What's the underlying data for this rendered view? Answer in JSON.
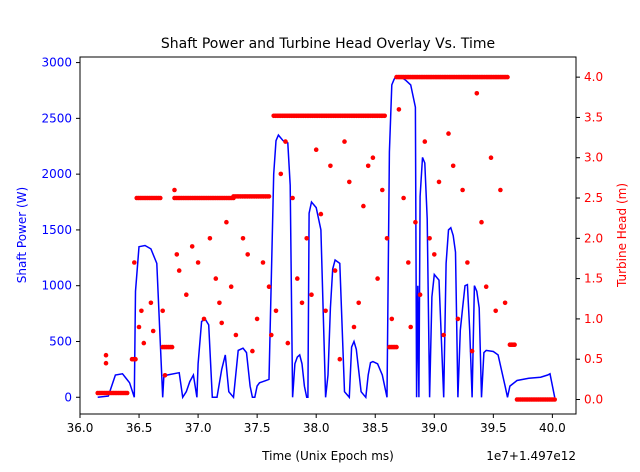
{
  "chart_data": {
    "type": "line",
    "title": "Shaft Power and Turbine Head Overlay Vs. Time",
    "xlabel": "Time (Unix Epoch ms)",
    "x_offset_text": "1e7+1.497e12",
    "xlim": [
      36.0,
      40.2
    ],
    "x_ticks": [
      "36.0",
      "36.5",
      "37.0",
      "37.5",
      "38.0",
      "38.5",
      "39.0",
      "39.5",
      "40.0"
    ],
    "left_axis": {
      "label": "Shaft Power (W)",
      "color": "#0000ff",
      "ylim": [
        -150,
        3050
      ],
      "ticks": [
        "0",
        "500",
        "1000",
        "1500",
        "2000",
        "2500",
        "3000"
      ]
    },
    "right_axis": {
      "label": "Turbine Head (m)",
      "color": "#ff0000",
      "ylim": [
        -0.18,
        4.25
      ],
      "ticks": [
        "0.0",
        "0.5",
        "1.0",
        "1.5",
        "2.0",
        "2.5",
        "3.0",
        "3.5",
        "4.0"
      ]
    },
    "series": [
      {
        "axis": "left",
        "style": "line",
        "color": "#0000ff",
        "x": [
          36.15,
          36.24,
          36.3,
          36.36,
          36.42,
          36.46,
          36.47,
          36.5,
          36.55,
          36.6,
          36.65,
          36.7,
          36.71,
          36.74,
          36.84,
          36.87,
          36.9,
          36.93,
          36.96,
          36.99,
          37.0,
          37.03,
          37.06,
          37.09,
          37.12,
          37.16,
          37.2,
          37.23,
          37.26,
          37.3,
          37.34,
          37.38,
          37.41,
          37.44,
          37.46,
          37.48,
          37.5,
          37.52,
          37.55,
          37.6,
          37.64,
          37.66,
          37.68,
          37.72,
          37.76,
          37.78,
          37.8,
          37.82,
          37.84,
          37.86,
          37.88,
          37.9,
          37.92,
          37.93,
          37.94,
          37.96,
          38.0,
          38.04,
          38.08,
          38.1,
          38.12,
          38.14,
          38.16,
          38.2,
          38.24,
          38.28,
          38.3,
          38.32,
          38.34,
          38.38,
          38.42,
          38.44,
          38.46,
          38.48,
          38.52,
          38.56,
          38.6,
          38.62,
          38.64,
          38.66,
          38.68,
          38.72,
          38.76,
          38.8,
          38.84,
          38.85,
          38.86,
          38.87,
          38.88,
          38.9,
          38.92,
          38.94,
          38.96,
          38.98,
          39.0,
          39.04,
          39.08,
          39.1,
          39.12,
          39.14,
          39.16,
          39.18,
          39.2,
          39.22,
          39.24,
          39.26,
          39.28,
          39.3,
          39.32,
          39.34,
          39.36,
          39.38,
          39.4,
          39.42,
          39.44,
          39.5,
          39.54,
          39.6,
          39.62,
          39.64,
          39.7,
          39.8,
          39.9,
          39.96,
          39.98,
          40.02
        ],
        "y": [
          0,
          10,
          200,
          210,
          130,
          0,
          950,
          1350,
          1360,
          1330,
          1200,
          0,
          180,
          200,
          220,
          0,
          50,
          140,
          200,
          0,
          300,
          680,
          700,
          650,
          0,
          0,
          250,
          380,
          50,
          0,
          420,
          440,
          400,
          100,
          0,
          0,
          100,
          130,
          140,
          160,
          2000,
          2300,
          2350,
          2300,
          2280,
          1900,
          0,
          300,
          360,
          380,
          300,
          100,
          0,
          0,
          1650,
          1750,
          1700,
          1500,
          0,
          200,
          800,
          1150,
          1230,
          1200,
          50,
          0,
          450,
          500,
          430,
          50,
          0,
          200,
          310,
          320,
          300,
          200,
          0,
          2200,
          2800,
          2850,
          2880,
          2870,
          2840,
          2800,
          2600,
          0,
          1000,
          0,
          1800,
          2150,
          2100,
          1600,
          0,
          900,
          1100,
          1050,
          0,
          1200,
          1500,
          1520,
          1450,
          1300,
          0,
          600,
          800,
          1000,
          1010,
          600,
          0,
          1000,
          950,
          800,
          0,
          400,
          420,
          410,
          380,
          100,
          0,
          100,
          150,
          170,
          180,
          200,
          210,
          0
        ]
      },
      {
        "axis": "right",
        "style": "markers",
        "color": "#ff0000",
        "segments": [
          {
            "x": [
              36.15,
              36.4
            ],
            "y": 0.08
          },
          {
            "x": [
              36.44,
              36.47
            ],
            "y": 0.5
          },
          {
            "x": [
              36.48,
              36.68
            ],
            "y": 2.5
          },
          {
            "x": [
              36.7,
              36.78
            ],
            "y": 0.65
          },
          {
            "x": [
              36.8,
              37.3
            ],
            "y": 2.5
          },
          {
            "x": [
              37.3,
              37.6
            ],
            "y": 2.52
          },
          {
            "x": [
              37.64,
              38.58
            ],
            "y": 3.52
          },
          {
            "x": [
              38.62,
              38.68
            ],
            "y": 0.65
          },
          {
            "x": [
              38.68,
              39.62
            ],
            "y": 4.0
          },
          {
            "x": [
              39.64,
              39.68
            ],
            "y": 0.68
          },
          {
            "x": [
              39.7,
              40.02
            ],
            "y": 0.0
          }
        ],
        "scatter": [
          [
            36.22,
            0.55
          ],
          [
            36.22,
            0.45
          ],
          [
            36.46,
            1.7
          ],
          [
            36.5,
            0.9
          ],
          [
            36.52,
            1.1
          ],
          [
            36.54,
            0.7
          ],
          [
            36.6,
            1.2
          ],
          [
            36.62,
            0.85
          ],
          [
            36.7,
            1.1
          ],
          [
            36.72,
            0.3
          ],
          [
            36.8,
            2.6
          ],
          [
            36.82,
            1.8
          ],
          [
            36.84,
            1.6
          ],
          [
            36.9,
            1.3
          ],
          [
            36.95,
            1.9
          ],
          [
            37.0,
            1.7
          ],
          [
            37.05,
            1.0
          ],
          [
            37.1,
            2.0
          ],
          [
            37.15,
            1.5
          ],
          [
            37.18,
            1.2
          ],
          [
            37.2,
            0.95
          ],
          [
            37.24,
            2.2
          ],
          [
            37.28,
            1.4
          ],
          [
            37.32,
            0.8
          ],
          [
            37.38,
            2.0
          ],
          [
            37.42,
            1.8
          ],
          [
            37.46,
            0.6
          ],
          [
            37.5,
            1.0
          ],
          [
            37.55,
            1.7
          ],
          [
            37.6,
            1.4
          ],
          [
            37.62,
            0.8
          ],
          [
            37.66,
            1.1
          ],
          [
            37.7,
            2.8
          ],
          [
            37.74,
            3.2
          ],
          [
            37.76,
            0.7
          ],
          [
            37.8,
            2.5
          ],
          [
            37.84,
            1.5
          ],
          [
            37.88,
            1.2
          ],
          [
            37.92,
            2.0
          ],
          [
            37.96,
            1.3
          ],
          [
            38.0,
            3.1
          ],
          [
            38.04,
            2.3
          ],
          [
            38.08,
            1.1
          ],
          [
            38.12,
            2.9
          ],
          [
            38.16,
            1.6
          ],
          [
            38.2,
            0.5
          ],
          [
            38.24,
            3.2
          ],
          [
            38.28,
            2.7
          ],
          [
            38.32,
            0.9
          ],
          [
            38.36,
            1.2
          ],
          [
            38.4,
            2.4
          ],
          [
            38.44,
            2.9
          ],
          [
            38.48,
            3.0
          ],
          [
            38.52,
            1.5
          ],
          [
            38.56,
            2.6
          ],
          [
            38.6,
            2.0
          ],
          [
            38.64,
            1.0
          ],
          [
            38.7,
            3.6
          ],
          [
            38.74,
            2.5
          ],
          [
            38.78,
            1.7
          ],
          [
            38.8,
            0.9
          ],
          [
            38.84,
            2.2
          ],
          [
            38.88,
            1.3
          ],
          [
            38.92,
            3.2
          ],
          [
            38.96,
            2.0
          ],
          [
            39.0,
            1.8
          ],
          [
            39.04,
            2.7
          ],
          [
            39.08,
            0.8
          ],
          [
            39.12,
            3.3
          ],
          [
            39.16,
            2.9
          ],
          [
            39.2,
            1.0
          ],
          [
            39.24,
            2.6
          ],
          [
            39.28,
            1.7
          ],
          [
            39.32,
            0.6
          ],
          [
            39.36,
            3.8
          ],
          [
            39.4,
            2.2
          ],
          [
            39.44,
            1.4
          ],
          [
            39.48,
            3.0
          ],
          [
            39.52,
            1.1
          ],
          [
            39.56,
            2.6
          ],
          [
            39.6,
            1.2
          ]
        ]
      }
    ],
    "grid": false
  }
}
